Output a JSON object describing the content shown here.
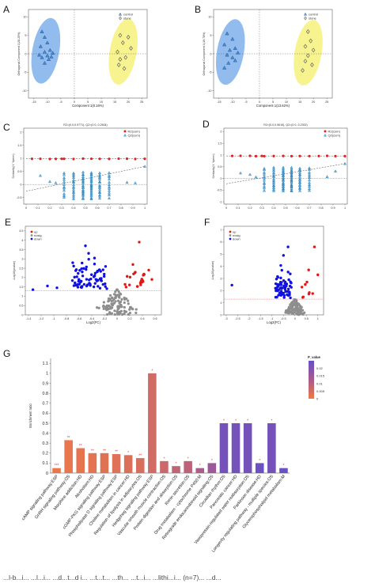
{
  "panel_letters": [
    "A",
    "B",
    "C",
    "D",
    "E",
    "F",
    "G"
  ],
  "colors": {
    "control": "#1f5faa",
    "sample": "#c8b020",
    "ellipse_control": "#6ea6e8",
    "ellipse_sample": "#f4ef6a",
    "r2": "#e02020",
    "q2": "#2a86c4",
    "up": "#e01818",
    "notsig": "#8e8e8e",
    "down": "#1010e0"
  },
  "chart_data": [
    {
      "id": "A",
      "type": "scatter",
      "xlabel": "Component 1(8.16%)",
      "ylabel": "Orthogonal Component 1(28.25%)",
      "legend": [
        "control",
        "stone"
      ],
      "xticks": [
        "-15",
        "-10",
        "-5",
        "0",
        "5",
        "10",
        "15",
        "20",
        "25"
      ],
      "yticks": [
        "10",
        "5",
        "0",
        "-5",
        "-10"
      ],
      "xlim": [
        -17,
        27
      ],
      "ylim": [
        -12,
        12
      ],
      "series": [
        {
          "name": "control",
          "marker": "triangle",
          "points": [
            [
              -12,
              6
            ],
            [
              -11,
              4.5
            ],
            [
              -10,
              3
            ],
            [
              -12.5,
              2
            ],
            [
              -9,
              1
            ],
            [
              -11,
              0.5
            ],
            [
              -8,
              0.2
            ],
            [
              -10,
              -0.5
            ],
            [
              -12,
              -1
            ],
            [
              -9.5,
              -1.5
            ],
            [
              -11,
              -2.5
            ],
            [
              -8.5,
              -0.8
            ],
            [
              -13,
              -0.3
            ]
          ]
        },
        {
          "name": "stone",
          "marker": "diamond",
          "points": [
            [
              17,
              5
            ],
            [
              20,
              4.5
            ],
            [
              18,
              3
            ],
            [
              21,
              1.5
            ],
            [
              16,
              0.5
            ],
            [
              19,
              -1
            ],
            [
              17,
              -1.5
            ],
            [
              16.5,
              -3
            ],
            [
              18.5,
              -4
            ]
          ]
        }
      ]
    },
    {
      "id": "B",
      "type": "scatter",
      "xlabel": "Component 1(13.62%)",
      "ylabel": "Orthogonal Component 1(19.78%)",
      "legend": [
        "control",
        "stone"
      ],
      "xticks": [
        "-15",
        "-10",
        "-5",
        "0",
        "5",
        "10",
        "15",
        "20",
        "25"
      ],
      "yticks": [
        "10",
        "5",
        "0",
        "-5",
        "-10"
      ],
      "xlim": [
        -17,
        27
      ],
      "ylim": [
        -12,
        12
      ],
      "series": [
        {
          "name": "control",
          "marker": "triangle",
          "points": [
            [
              -12,
              5.5
            ],
            [
              -10,
              4
            ],
            [
              -13,
              2.5
            ],
            [
              -9,
              1.5
            ],
            [
              -11,
              1
            ],
            [
              -8,
              0.3
            ],
            [
              -12,
              -0.3
            ],
            [
              -10,
              -1
            ],
            [
              -9,
              -1.8
            ],
            [
              -11.5,
              -2.5
            ],
            [
              -13,
              -3.8
            ]
          ]
        },
        {
          "name": "stone",
          "marker": "diamond",
          "points": [
            [
              18,
              6
            ],
            [
              19,
              3.5
            ],
            [
              17,
              2
            ],
            [
              20,
              1
            ],
            [
              18,
              -0.5
            ],
            [
              17,
              -2
            ],
            [
              19.5,
              -3
            ],
            [
              16,
              -4.5
            ]
          ]
        }
      ]
    },
    {
      "id": "C",
      "type": "scatter",
      "title": "R2=(0.0,0.9771), Q2=(0.0,-0.2604)",
      "ylabel": "Similarity(Y, Yperm)",
      "legend": [
        "R2(cum)",
        "Q2(cum)"
      ],
      "xticks": [
        "0",
        "0.1",
        "0.2",
        "0.3",
        "0.4",
        "0.5",
        "0.6",
        "0.7",
        "0.8",
        "0.9",
        "1"
      ],
      "yticks": [
        "2",
        "1.5",
        "1",
        "0.5",
        "0",
        "-0.5"
      ],
      "xlim": [
        -0.02,
        1.02
      ],
      "ylim": [
        -0.75,
        2.15
      ],
      "r2_line": [
        0.98,
        0.98
      ],
      "q2_line": [
        -0.26,
        0.69
      ]
    },
    {
      "id": "D",
      "type": "scatter",
      "title": "R2=(0.0,0.9616), Q2=(0.0,-0.2302)",
      "ylabel": "Similarity(Y, Yperm)",
      "legend": [
        "R2(cum)",
        "Q2(cum)"
      ],
      "xticks": [
        "0",
        "0.1",
        "0.2",
        "0.3",
        "0.4",
        "0.5",
        "0.6",
        "0.7",
        "0.8",
        "0.9",
        "1"
      ],
      "yticks": [
        "2",
        "1.5",
        "1",
        "0.5",
        "0",
        "-0.5",
        "-1"
      ],
      "xlim": [
        -0.02,
        1.02
      ],
      "ylim": [
        -1.1,
        2.15
      ],
      "r2_line": [
        0.96,
        0.96
      ],
      "q2_line": [
        -0.23,
        0.63
      ]
    },
    {
      "id": "E",
      "type": "scatter",
      "xlabel": "Log2(FC)",
      "ylabel": "-Log10(pvalue)",
      "legend": [
        "up",
        "nosig",
        "down"
      ],
      "xticks": [
        "-1.4",
        "-1.2",
        "-1",
        "-0.8",
        "-0.6",
        "-0.4",
        "-0.2",
        "0",
        "0.2",
        "0.4",
        "0.6"
      ],
      "yticks": [
        "4.5",
        "4",
        "3.5",
        "3",
        "2.5",
        "2",
        "1.5",
        "1",
        "0.5",
        "0"
      ],
      "xlim": [
        -1.45,
        0.7
      ],
      "ylim": [
        0,
        4.75
      ],
      "threshold": 1.3
    },
    {
      "id": "F",
      "type": "scatter",
      "xlabel": "Log2(FC)",
      "ylabel": "-Log10(pvalue)",
      "legend": [
        "up",
        "nosig",
        "down"
      ],
      "xticks": [
        "-3",
        "-2.5",
        "-2",
        "-1.5",
        "-1",
        "-0.5",
        "0",
        "0.5",
        "1"
      ],
      "yticks": [
        "7",
        "6",
        "5",
        "4",
        "3",
        "2",
        "1",
        "0"
      ],
      "xlim": [
        -3.1,
        1.25
      ],
      "ylim": [
        0,
        7.3
      ],
      "threshold": 1.3
    },
    {
      "id": "G",
      "type": "bar",
      "ylabel": "Enrichment ratio",
      "legend_title": "P_value",
      "legend_ticks": [
        "0.02",
        "0.015",
        "0.01",
        "0.005",
        "0"
      ],
      "yticks": [
        "0",
        "0.1",
        "0.2",
        "0.3",
        "0.4",
        "0.5",
        "0.6",
        "0.7",
        "0.8",
        "0.9",
        "1",
        "1.1"
      ],
      "ylim": [
        0,
        1.15
      ],
      "categories": [
        "cAMP signaling pathway:ESP",
        "GnRH signaling pathway:OS",
        "Morphine addiction:HD",
        "Alcoholism:HD",
        "cGMP-PKG signaling pathway:ESP",
        "Phospholipase D signaling pathway:ESP",
        "Choline metabolism in cancer:HD",
        "Regulation of lipolysis in adipocytes:OS",
        "Hedgehog signaling pathway:ESP",
        "Vascular smooth muscle contraction:OS",
        "Protein digestion and absorption:OS",
        "Renin secretion:OS",
        "Drug metabolism - cytochrome P450:M",
        "Retrograde endocannabinoid signaling:OS",
        "Circadian rhythm:OS",
        "Pancreatic cancer:HD",
        "Vasopressin-regulated water reabsorption:OS",
        "Parkinson disease:HD",
        "Longevity regulating pathway - multiple species:OS",
        "Glycerophospholipid metabolism:M"
      ],
      "values": [
        0.05,
        0.33,
        0.25,
        0.2,
        0.2,
        0.19,
        0.18,
        0.15,
        1.0,
        0.12,
        0.07,
        0.12,
        0.05,
        0.1,
        0.5,
        0.5,
        0.5,
        0.1,
        0.5,
        0.05
      ],
      "pvalues": [
        0.0005,
        0.001,
        0.0015,
        0.002,
        0.0025,
        0.003,
        0.0035,
        0.004,
        0.0055,
        0.0065,
        0.008,
        0.009,
        0.012,
        0.015,
        0.022,
        0.022,
        0.022,
        0.0235,
        0.022,
        0.024
      ],
      "stars": [
        "***",
        "**",
        "**",
        "**",
        "**",
        "**",
        "*",
        "**",
        "*",
        "*",
        "*",
        "*",
        "*",
        "*",
        "*",
        "*",
        "*",
        "*",
        "*",
        "*"
      ]
    }
  ],
  "caption": "...l-b...i... ...l...i... ...d...t...d i... ...t...t... ...th... ...t...i... ...lithi...i... (n=7)... ...d..."
}
